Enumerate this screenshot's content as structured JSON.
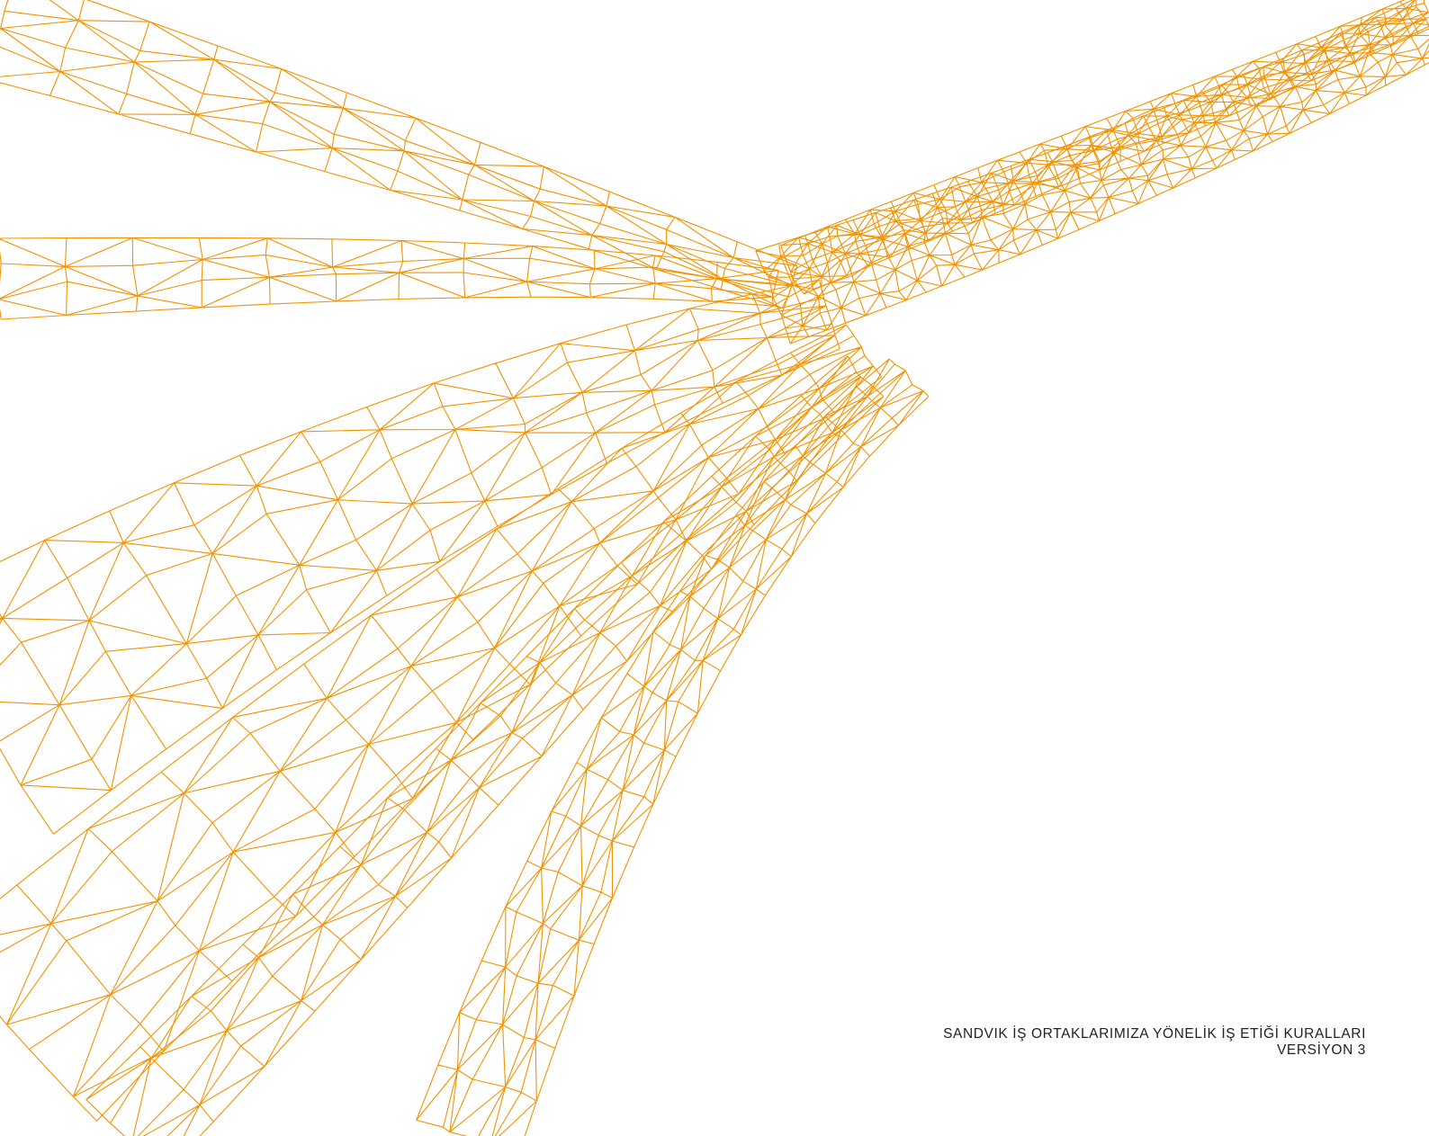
{
  "document": {
    "title": "SANDVIK İŞ ORTAKLARIMIZA YÖNELİK İŞ ETİĞİ KURALLARI",
    "version": "VERSİYON 3"
  },
  "colors": {
    "accent": "#f39200",
    "text": "#222222",
    "background": "#ffffff"
  },
  "artwork": {
    "description_icon": "orange-wireframe-rope-illustration"
  }
}
